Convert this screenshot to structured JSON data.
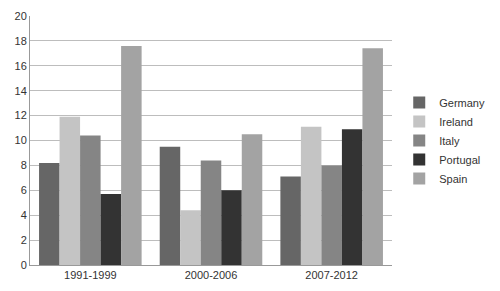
{
  "chart_data": {
    "type": "bar",
    "categories": [
      "1991-1999",
      "2000-2006",
      "2007-2012"
    ],
    "series": [
      {
        "name": "Germany",
        "color": "#666666",
        "values": [
          8.2,
          9.5,
          7.1
        ]
      },
      {
        "name": "Ireland",
        "color": "#c4c4c4",
        "values": [
          11.9,
          4.4,
          11.1
        ]
      },
      {
        "name": "Italy",
        "color": "#858585",
        "values": [
          10.4,
          8.4,
          8.0
        ]
      },
      {
        "name": "Portugal",
        "color": "#333333",
        "values": [
          5.7,
          6.0,
          10.9
        ]
      },
      {
        "name": "Spain",
        "color": "#a3a3a3",
        "values": [
          17.6,
          10.5,
          17.4
        ]
      }
    ],
    "ylim": [
      0,
      20
    ],
    "yticks": [
      0,
      2,
      4,
      6,
      8,
      10,
      12,
      14,
      16,
      18,
      20
    ],
    "grid": true,
    "legend": "right"
  }
}
